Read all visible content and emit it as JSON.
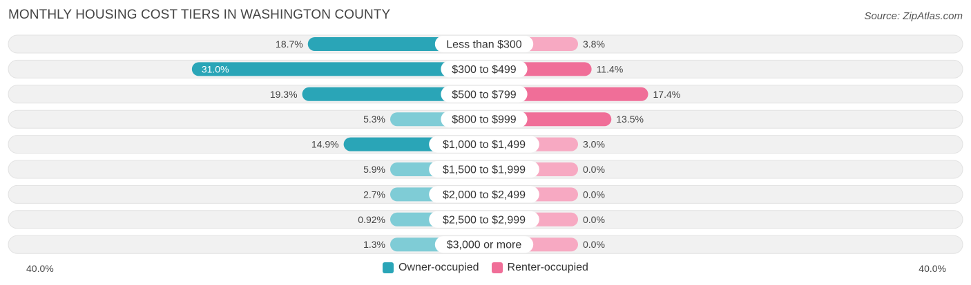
{
  "title": "MONTHLY HOUSING COST TIERS IN WASHINGTON COUNTY",
  "source": "Source: ZipAtlas.com",
  "colors": {
    "owner_dark": "#2aa5b7",
    "owner_light": "#7fccd6",
    "renter_dark": "#f06e98",
    "renter_light": "#f7a9c2",
    "row_bg": "#f1f1f1"
  },
  "chart_data": {
    "type": "bar",
    "orientation": "horizontal-diverging",
    "categories": [
      "Less than $300",
      "$300 to $499",
      "$500 to $799",
      "$800 to $999",
      "$1,000 to $1,499",
      "$1,500 to $1,999",
      "$2,000 to $2,499",
      "$2,500 to $2,999",
      "$3,000 or more"
    ],
    "series": [
      {
        "name": "Owner-occupied",
        "values": [
          18.7,
          31.0,
          19.3,
          5.3,
          14.9,
          5.9,
          2.7,
          0.92,
          1.3
        ],
        "labels": [
          "18.7%",
          "31.0%",
          "19.3%",
          "5.3%",
          "14.9%",
          "5.9%",
          "2.7%",
          "0.92%",
          "1.3%"
        ]
      },
      {
        "name": "Renter-occupied",
        "values": [
          3.8,
          11.4,
          17.4,
          13.5,
          3.0,
          0.0,
          0.0,
          0.0,
          0.0
        ],
        "labels": [
          "3.8%",
          "11.4%",
          "17.4%",
          "13.5%",
          "3.0%",
          "0.0%",
          "0.0%",
          "0.0%",
          "0.0%"
        ]
      }
    ],
    "xlim": [
      -40,
      40
    ],
    "axis_left_label": "40.0%",
    "axis_right_label": "40.0%",
    "legend_position": "bottom-center"
  }
}
